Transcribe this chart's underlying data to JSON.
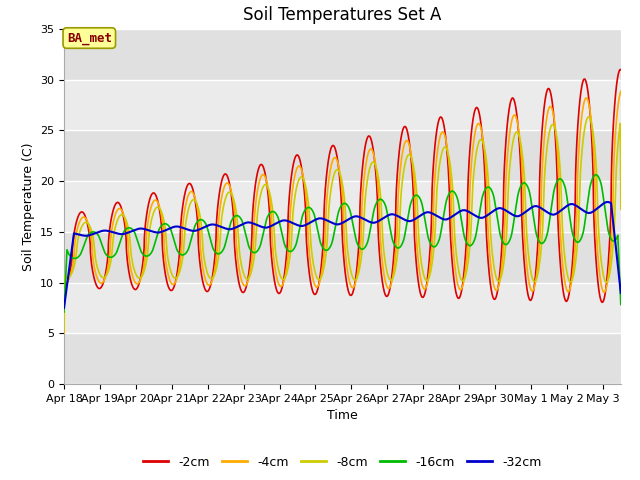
{
  "title": "Soil Temperatures Set A",
  "xlabel": "Time",
  "ylabel": "Soil Temperature (C)",
  "ylim": [
    0,
    35
  ],
  "yticks": [
    0,
    5,
    10,
    15,
    20,
    25,
    30,
    35
  ],
  "start_day": 18,
  "n_days": 15.5,
  "series_labels": [
    "-2cm",
    "-4cm",
    "-8cm",
    "-16cm",
    "-32cm"
  ],
  "series_colors": [
    "#dd0000",
    "#ffaa00",
    "#cccc00",
    "#00bb00",
    "#0000cc"
  ],
  "series_linewidths": [
    1.2,
    1.2,
    1.2,
    1.2,
    1.5
  ],
  "annotation_text": "BA_met",
  "annotation_text_color": "#880000",
  "annotation_bg": "#ffff99",
  "annotation_border": "#999900",
  "plot_bg": "#e8e8e8",
  "band_color": "#d8d8d8",
  "grid_color": "#ffffff",
  "title_fontsize": 12,
  "axis_label_fontsize": 9,
  "tick_fontsize": 8,
  "legend_fontsize": 9
}
